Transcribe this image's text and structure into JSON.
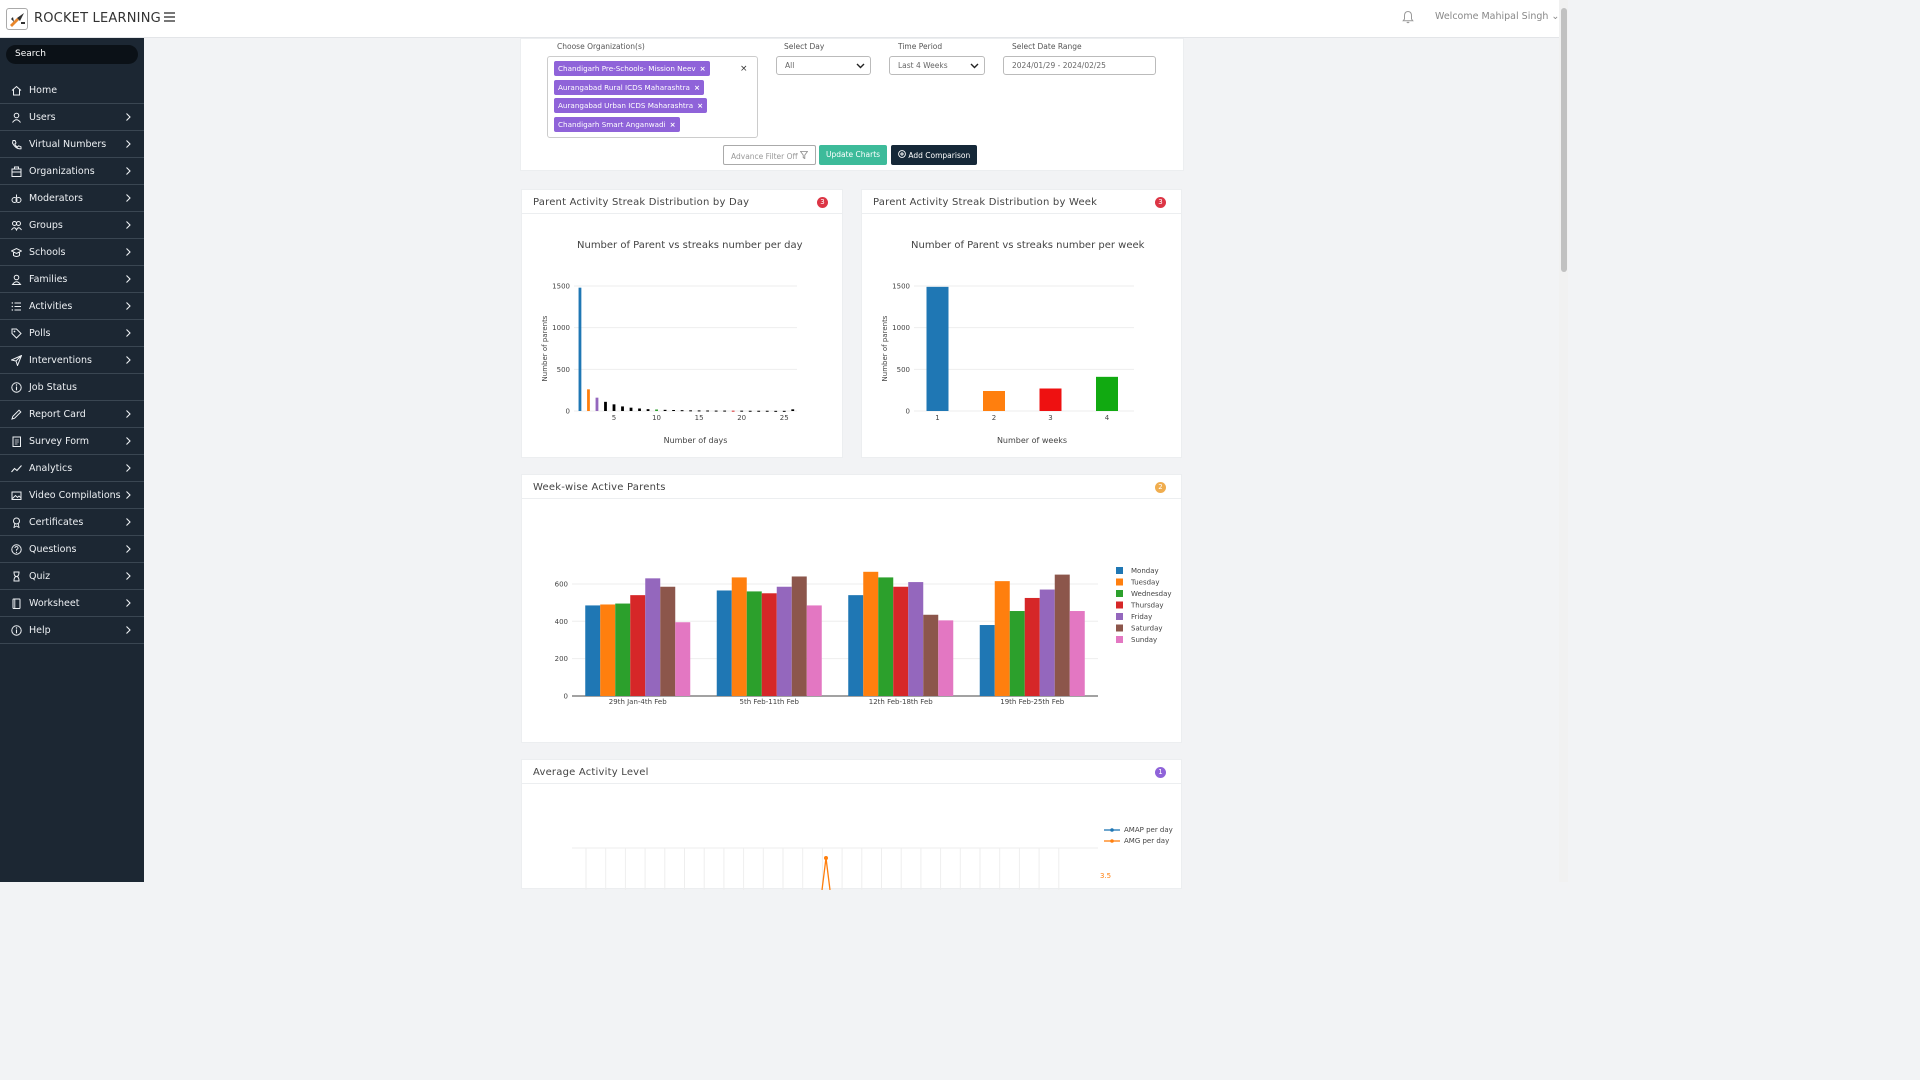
{
  "header": {
    "brand": "ROCKET LEARNING",
    "welcome": "Welcome Mahipal Singh ⌄"
  },
  "sidebar": {
    "search_label": "Search",
    "items": [
      {
        "label": "Home",
        "icon": "home-icon",
        "chevron": false
      },
      {
        "label": "Users",
        "icon": "user-icon",
        "chevron": true
      },
      {
        "label": "Virtual Numbers",
        "icon": "phone-icon",
        "chevron": true
      },
      {
        "label": "Organizations",
        "icon": "building-icon",
        "chevron": true
      },
      {
        "label": "Moderators",
        "icon": "moderator-icon",
        "chevron": true
      },
      {
        "label": "Groups",
        "icon": "groups-icon",
        "chevron": true
      },
      {
        "label": "Schools",
        "icon": "school-icon",
        "chevron": true
      },
      {
        "label": "Families",
        "icon": "family-icon",
        "chevron": true
      },
      {
        "label": "Activities",
        "icon": "list-icon",
        "chevron": true
      },
      {
        "label": "Polls",
        "icon": "tag-icon",
        "chevron": true
      },
      {
        "label": "Interventions",
        "icon": "send-icon",
        "chevron": true
      },
      {
        "label": "Job Status",
        "icon": "info-icon",
        "chevron": false
      },
      {
        "label": "Report Card",
        "icon": "pen-icon",
        "chevron": true
      },
      {
        "label": "Survey Form",
        "icon": "form-icon",
        "chevron": true
      },
      {
        "label": "Analytics",
        "icon": "analytics-icon",
        "chevron": true
      },
      {
        "label": "Video Compilations",
        "icon": "image-icon",
        "chevron": true
      },
      {
        "label": "Certificates",
        "icon": "certificate-icon",
        "chevron": true
      },
      {
        "label": "Questions",
        "icon": "question-icon",
        "chevron": true
      },
      {
        "label": "Quiz",
        "icon": "hourglass-icon",
        "chevron": true
      },
      {
        "label": "Worksheet",
        "icon": "book-icon",
        "chevron": true
      },
      {
        "label": "Help",
        "icon": "info-icon",
        "chevron": true
      }
    ]
  },
  "filters": {
    "org_label": "Choose Organization(s)",
    "orgs": [
      "Chandigarh Pre-Schools- Mission Neev",
      "Aurangabad Rural ICDS Maharashtra",
      "Aurangabad Urban ICDS Maharashtra",
      "Chandigarh Smart Anganwadi"
    ],
    "day_label": "Select Day",
    "day_value": "All",
    "period_label": "Time Period",
    "period_value": "Last 4 Weeks",
    "range_label": "Select Date Range",
    "range_value": "2024/01/29 - 2024/02/25",
    "advance_filter": "Advance Filter Off",
    "update_charts": "Update Charts",
    "add_comparison": "Add Comparison"
  },
  "colors": {
    "sidebar_bg": "#1c2733",
    "tag_purple": "#8f63d9",
    "badge_red": "#dc3545",
    "badge_orange": "#f0ad4e",
    "badge_purple": "#8f63d9",
    "green_button": "#3dbb9a",
    "dark_button": "#152838"
  },
  "cards": {
    "day_streak": {
      "title": "Parent Activity Streak Distribution by Day",
      "badge": "3"
    },
    "week_streak": {
      "title": "Parent Activity Streak Distribution by Week",
      "badge": "3"
    },
    "weekwise": {
      "title": "Week-wise Active Parents",
      "badge": "2"
    },
    "avg_activity": {
      "title": "Average Activity Level",
      "badge": "1"
    }
  },
  "chart_data": [
    {
      "type": "bar",
      "title": "Number of Parent vs streaks number per day",
      "xlabel": "Number of days",
      "ylabel": "Number of parents",
      "ylim": [
        0,
        1500
      ],
      "yticks": [
        "0",
        "500",
        "1000",
        "1500"
      ],
      "xticks": [
        "5",
        "10",
        "15",
        "20",
        "25"
      ],
      "x": [
        1,
        2,
        3,
        4,
        5,
        6,
        7,
        8,
        9,
        10,
        11,
        12,
        13,
        14,
        15,
        16,
        17,
        18,
        19,
        20,
        21,
        22,
        23,
        24,
        25,
        26
      ],
      "values": [
        1480,
        260,
        160,
        110,
        80,
        55,
        40,
        30,
        22,
        18,
        14,
        12,
        10,
        8,
        7,
        6,
        5,
        5,
        4,
        4,
        3,
        3,
        3,
        2,
        2,
        20
      ],
      "colors": [
        "#1f77b4",
        "#ff7f0e",
        "#9467bd",
        "#000000",
        "#000000",
        "#000000",
        "#000000",
        "#000000",
        "#000000",
        "#2ca02c",
        "#000000",
        "#000000",
        "#000000",
        "#000000",
        "#000000",
        "#000000",
        "#000000",
        "#000000",
        "#d62728",
        "#000000",
        "#000000",
        "#000000",
        "#000000",
        "#000000",
        "#000000",
        "#000000"
      ],
      "grid": true
    },
    {
      "type": "bar",
      "title": "Number of Parent vs streaks number per week",
      "xlabel": "Number of weeks",
      "ylabel": "Number of parents",
      "ylim": [
        0,
        1500
      ],
      "yticks": [
        "0",
        "500",
        "1000",
        "1500"
      ],
      "categories": [
        "1",
        "2",
        "3",
        "4"
      ],
      "values": [
        1490,
        240,
        270,
        410
      ],
      "colors": [
        "#1f77b4",
        "#ff7f0e",
        "#ee1111",
        "#11aa11"
      ],
      "grid": true
    },
    {
      "type": "bar",
      "categories": [
        "29th Jan-4th Feb",
        "5th Feb-11th Feb",
        "12th Feb-18th Feb",
        "19th Feb-25th Feb"
      ],
      "ylim": [
        0,
        680
      ],
      "yticks": [
        "0",
        "200",
        "400",
        "600"
      ],
      "legend": "right",
      "series": [
        {
          "name": "Monday",
          "color": "#1f77b4",
          "values": [
            485,
            565,
            540,
            380
          ]
        },
        {
          "name": "Tuesday",
          "color": "#ff7f0e",
          "values": [
            490,
            635,
            665,
            615
          ]
        },
        {
          "name": "Wednesday",
          "color": "#2ca02c",
          "values": [
            495,
            560,
            635,
            455
          ]
        },
        {
          "name": "Thursday",
          "color": "#d62728",
          "values": [
            540,
            550,
            585,
            525
          ]
        },
        {
          "name": "Friday",
          "color": "#9467bd",
          "values": [
            630,
            585,
            610,
            570
          ]
        },
        {
          "name": "Saturday",
          "color": "#8c564b",
          "values": [
            585,
            640,
            435,
            650
          ]
        },
        {
          "name": "Sunday",
          "color": "#e377c2",
          "values": [
            395,
            485,
            405,
            455
          ]
        }
      ],
      "grid": true
    },
    {
      "type": "line",
      "legend": "top-right",
      "series": [
        {
          "name": "AMAP per day",
          "color": "#1f77b4"
        },
        {
          "name": "AMG per day",
          "color": "#ff7f0e"
        }
      ],
      "y2tick_visible": "3.5"
    }
  ]
}
